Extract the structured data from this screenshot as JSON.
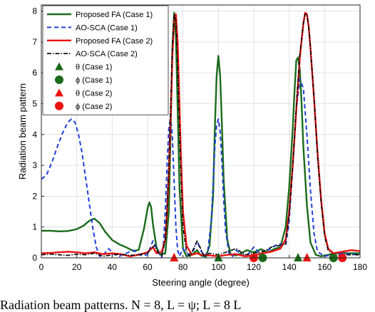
{
  "caption_text": "Radiation beam patterns. N = 8, L = ψ; L = 8 L",
  "chart_data": {
    "type": "line",
    "xlabel": "Steering angle (degree)",
    "ylabel": "Radiation beam pattern",
    "xlim": [
      0,
      180
    ],
    "ylim": [
      0,
      8.2
    ],
    "xticks": [
      0,
      20,
      40,
      60,
      80,
      100,
      120,
      140,
      160,
      180
    ],
    "yticks": [
      0,
      1,
      2,
      3,
      4,
      5,
      6,
      7,
      8
    ],
    "grid": true,
    "legend_position": "top-left",
    "series": [
      {
        "name": "Proposed FA (Case 1)",
        "color": "#1a6b1a",
        "style": "solid",
        "x": [
          0,
          5,
          10,
          15,
          20,
          24,
          27,
          30,
          33,
          36,
          40,
          44,
          48,
          52,
          55,
          58,
          60,
          61,
          62,
          63,
          65,
          67,
          70,
          72,
          73,
          74,
          75,
          76,
          77,
          78,
          80,
          82,
          85,
          88,
          90,
          93,
          95,
          97,
          98,
          99,
          100,
          101,
          102,
          103,
          105,
          107,
          110,
          113,
          116,
          120,
          124,
          128,
          132,
          135,
          138,
          140,
          142,
          143,
          144,
          145,
          146,
          147,
          148,
          150,
          152,
          155,
          158,
          162,
          166,
          170,
          175,
          180
        ],
        "values": [
          0.88,
          0.88,
          0.86,
          0.87,
          0.93,
          1.05,
          1.2,
          1.27,
          1.12,
          0.85,
          0.58,
          0.44,
          0.34,
          0.22,
          0.26,
          0.95,
          1.6,
          1.8,
          1.65,
          1.1,
          0.35,
          0.12,
          0.14,
          1.5,
          4.0,
          6.8,
          7.95,
          7.2,
          4.8,
          2.3,
          0.3,
          0.05,
          0.1,
          0.25,
          0.08,
          0.04,
          0.4,
          2.0,
          4.2,
          5.9,
          6.55,
          5.9,
          4.3,
          2.5,
          0.6,
          0.1,
          0.08,
          0.15,
          0.25,
          0.18,
          0.28,
          0.18,
          0.3,
          0.35,
          1.0,
          2.3,
          4.2,
          5.4,
          6.4,
          6.5,
          6.1,
          5.0,
          3.6,
          1.7,
          0.5,
          0.1,
          0.05,
          0.1,
          0.15,
          0.15,
          0.15,
          0.15
        ]
      },
      {
        "name": "AO-SCA (Case 1)",
        "color": "#1f3fdb",
        "style": "dashed",
        "x": [
          0,
          3,
          6,
          9,
          12,
          15,
          17,
          19,
          21,
          23,
          25,
          27,
          29,
          31,
          33,
          35,
          38,
          41,
          44,
          48,
          52,
          56,
          60,
          63,
          66,
          68,
          69,
          70,
          71,
          72,
          73,
          74,
          75,
          76,
          77,
          78,
          80,
          83,
          86,
          88,
          90,
          92,
          94,
          96,
          97,
          98,
          99,
          100,
          101,
          102,
          103,
          104,
          106,
          108,
          110,
          113,
          116,
          120,
          124,
          128,
          132,
          135,
          138,
          140,
          142,
          144,
          146,
          148,
          150,
          152,
          154,
          156,
          160,
          165,
          170,
          175,
          180
        ],
        "values": [
          2.55,
          2.7,
          3.1,
          3.6,
          4.05,
          4.4,
          4.5,
          4.4,
          4.0,
          3.4,
          2.6,
          1.8,
          1.0,
          0.35,
          0.05,
          0.1,
          0.3,
          0.12,
          0.05,
          0.15,
          0.25,
          0.08,
          0.1,
          0.55,
          0.2,
          0.0,
          0.5,
          1.5,
          3.0,
          4.2,
          4.6,
          3.9,
          2.5,
          1.0,
          0.25,
          0.05,
          0.3,
          0.1,
          0.25,
          0.55,
          0.25,
          0.05,
          0.2,
          1.2,
          2.4,
          3.6,
          4.3,
          4.5,
          4.1,
          3.1,
          1.9,
          0.9,
          0.15,
          0.05,
          0.25,
          0.1,
          0.05,
          0.35,
          0.1,
          0.25,
          0.4,
          0.45,
          0.4,
          1.2,
          3.0,
          4.8,
          5.8,
          5.5,
          4.0,
          2.2,
          0.8,
          0.2,
          0.05,
          0.12,
          0.15,
          0.12,
          0.1
        ]
      },
      {
        "name": "Proposed FA (Case 2)",
        "color": "#ee1111",
        "style": "solid",
        "x": [
          0,
          5,
          10,
          15,
          20,
          25,
          30,
          35,
          40,
          45,
          50,
          55,
          60,
          63,
          65,
          68,
          70,
          71,
          72,
          73,
          74,
          75,
          76,
          77,
          78,
          79,
          80,
          82,
          85,
          88,
          90,
          95,
          100,
          105,
          110,
          115,
          120,
          125,
          130,
          135,
          138,
          140,
          142,
          144,
          146,
          148,
          149,
          150,
          151,
          152,
          154,
          156,
          158,
          160,
          162,
          165,
          170,
          175,
          180
        ],
        "values": [
          0.15,
          0.16,
          0.18,
          0.2,
          0.18,
          0.15,
          0.18,
          0.12,
          0.15,
          0.12,
          0.05,
          0.1,
          0.18,
          0.35,
          0.15,
          0.2,
          0.6,
          1.5,
          2.8,
          4.5,
          6.5,
          7.7,
          7.9,
          7.0,
          5.0,
          3.0,
          1.5,
          0.4,
          0.1,
          0.15,
          0.1,
          0.08,
          0.05,
          0.1,
          0.12,
          0.05,
          0.08,
          0.15,
          0.2,
          0.3,
          0.6,
          1.5,
          3.0,
          4.8,
          6.5,
          7.6,
          7.95,
          7.9,
          7.5,
          6.8,
          5.2,
          3.4,
          1.9,
          0.8,
          0.3,
          0.15,
          0.2,
          0.25,
          0.22
        ]
      },
      {
        "name": "AO-SCA (Case 2)",
        "color": "#000000",
        "style": "dashdot",
        "x": [
          0,
          5,
          10,
          15,
          20,
          25,
          30,
          35,
          40,
          45,
          50,
          55,
          60,
          62,
          64,
          66,
          68,
          70,
          71,
          72,
          73,
          74,
          75,
          76,
          77,
          78,
          79,
          80,
          82,
          84,
          86,
          88,
          90,
          92,
          95,
          100,
          105,
          110,
          115,
          120,
          125,
          130,
          134,
          138,
          140,
          142,
          144,
          146,
          148,
          149,
          150,
          151,
          152,
          154,
          156,
          158,
          160,
          162,
          165,
          170,
          175,
          180
        ],
        "values": [
          0.1,
          0.12,
          0.1,
          0.08,
          0.12,
          0.1,
          0.15,
          0.05,
          0.1,
          0.12,
          0.08,
          0.1,
          0.15,
          0.3,
          0.4,
          0.15,
          0.05,
          0.6,
          1.6,
          3.0,
          4.8,
          6.8,
          7.9,
          7.7,
          6.2,
          4.2,
          2.4,
          1.0,
          0.2,
          0.05,
          0.3,
          0.55,
          0.3,
          0.05,
          0.15,
          0.1,
          0.2,
          0.3,
          0.1,
          0.15,
          0.2,
          0.35,
          0.4,
          0.45,
          1.4,
          3.0,
          4.9,
          6.6,
          7.6,
          7.9,
          7.9,
          7.5,
          6.8,
          5.2,
          3.3,
          1.8,
          0.7,
          0.25,
          0.08,
          0.1,
          0.1,
          0.1
        ]
      }
    ],
    "markers": [
      {
        "name": "θ (Case 1)",
        "shape": "triangle",
        "color": "#1a6b1a",
        "x": [
          75,
          100,
          145
        ],
        "values": [
          0,
          0,
          0
        ]
      },
      {
        "name": "ϕ (Case 1)",
        "shape": "circle",
        "color": "#1a6b1a",
        "x": [
          125,
          165
        ],
        "values": [
          0,
          0
        ]
      },
      {
        "name": "θ (Case 2)",
        "shape": "triangle",
        "color": "#ee1111",
        "x": [
          75,
          150
        ],
        "values": [
          0,
          0
        ]
      },
      {
        "name": "ϕ (Case 2)",
        "shape": "circle",
        "color": "#ee1111",
        "x": [
          120,
          170
        ],
        "values": [
          0,
          0
        ]
      }
    ]
  }
}
